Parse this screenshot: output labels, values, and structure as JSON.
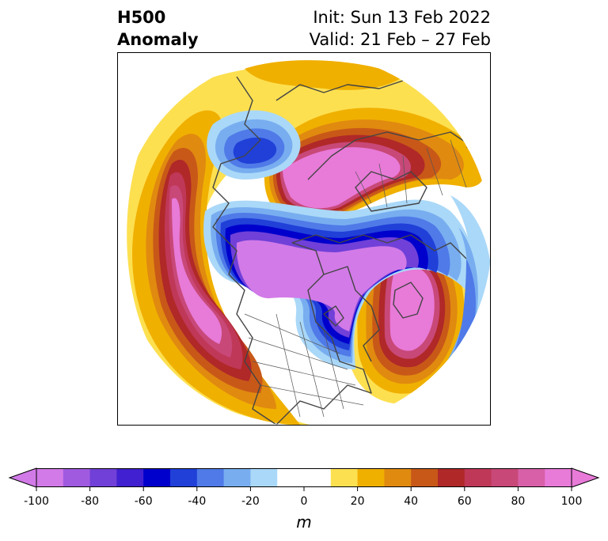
{
  "title": {
    "left_line1": "H500",
    "left_line2": "Anomaly",
    "init": "Init: Sun 13 Feb 2022",
    "valid": "Valid: 21 Feb – 27 Feb"
  },
  "colorbar": {
    "unit": "m",
    "ticks": [
      "-100",
      "-80",
      "-60",
      "-40",
      "-20",
      "0",
      "20",
      "40",
      "60",
      "80",
      "100"
    ],
    "colors": [
      "#d27ae8",
      "#a05ae0",
      "#7040d8",
      "#4020d0",
      "#0000cc",
      "#2040d8",
      "#4f7ae8",
      "#78aef0",
      "#aad8f8",
      "#ffffff",
      "#ffffff",
      "#fde050",
      "#f0b000",
      "#e08a10",
      "#c85818",
      "#b02828",
      "#c03858",
      "#c84878",
      "#d860a8",
      "#e87ad8"
    ],
    "range": [
      -100,
      100
    ]
  },
  "map": {
    "projection": "north-polar-stereographic",
    "variable": "500 hPa geopotential height anomaly"
  }
}
